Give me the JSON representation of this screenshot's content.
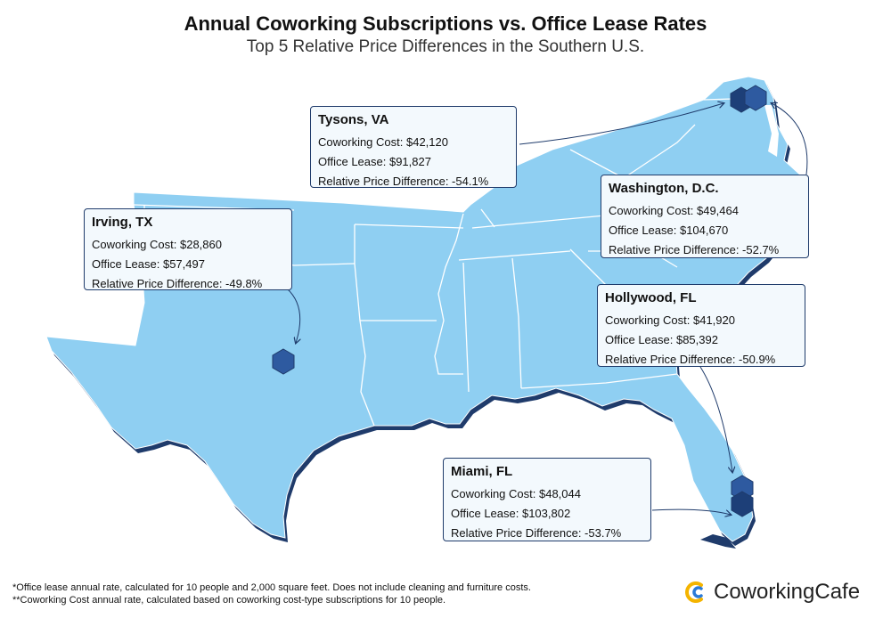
{
  "title": "Annual Coworking Subscriptions vs. Office Lease Rates",
  "subtitle": "Top 5 Relative Price Differences in the Southern U.S.",
  "colors": {
    "land": "#8fcff2",
    "border": "#ffffff",
    "coast": "#1f3b6b",
    "marker": "#2e5aa0",
    "marker_dark": "#1d3f78",
    "callout_bg": "#f3f9fd",
    "logo_accent": "#f4b400",
    "logo_blue": "#2a7ad8"
  },
  "cities": [
    {
      "id": "tysons",
      "name": "Tysons, VA",
      "coworking": "Coworking Cost: $42,120",
      "lease": "Office Lease: $91,827",
      "diff": "Relative Price Difference: -54.1%"
    },
    {
      "id": "irving",
      "name": "Irving, TX",
      "coworking": "Coworking Cost: $28,860",
      "lease": "Office Lease: $57,497",
      "diff": "Relative Price Difference: -49.8%"
    },
    {
      "id": "dc",
      "name": "Washington, D.C.",
      "coworking": "Coworking Cost: $49,464",
      "lease": "Office Lease: $104,670",
      "diff": "Relative Price Difference: -52.7%"
    },
    {
      "id": "hollywood",
      "name": "Hollywood, FL",
      "coworking": "Coworking Cost: $41,920",
      "lease": "Office Lease: $85,392",
      "diff": "Relative Price Difference: -50.9%"
    },
    {
      "id": "miami",
      "name": "Miami, FL",
      "coworking": "Coworking Cost: $48,044",
      "lease": "Office Lease: $103,802",
      "diff": "Relative Price Difference: -53.7%"
    }
  ],
  "footnotes": [
    "*Office lease annual rate, calculated for 10 people and 2,000 square feet. Does not include cleaning and furniture costs.",
    "**Coworking Cost annual rate, calculated based on coworking cost-type subscriptions for 10 people."
  ],
  "logo": {
    "text": "CoworkingCafe",
    "icon": "coworkingcafe-logo-icon"
  }
}
